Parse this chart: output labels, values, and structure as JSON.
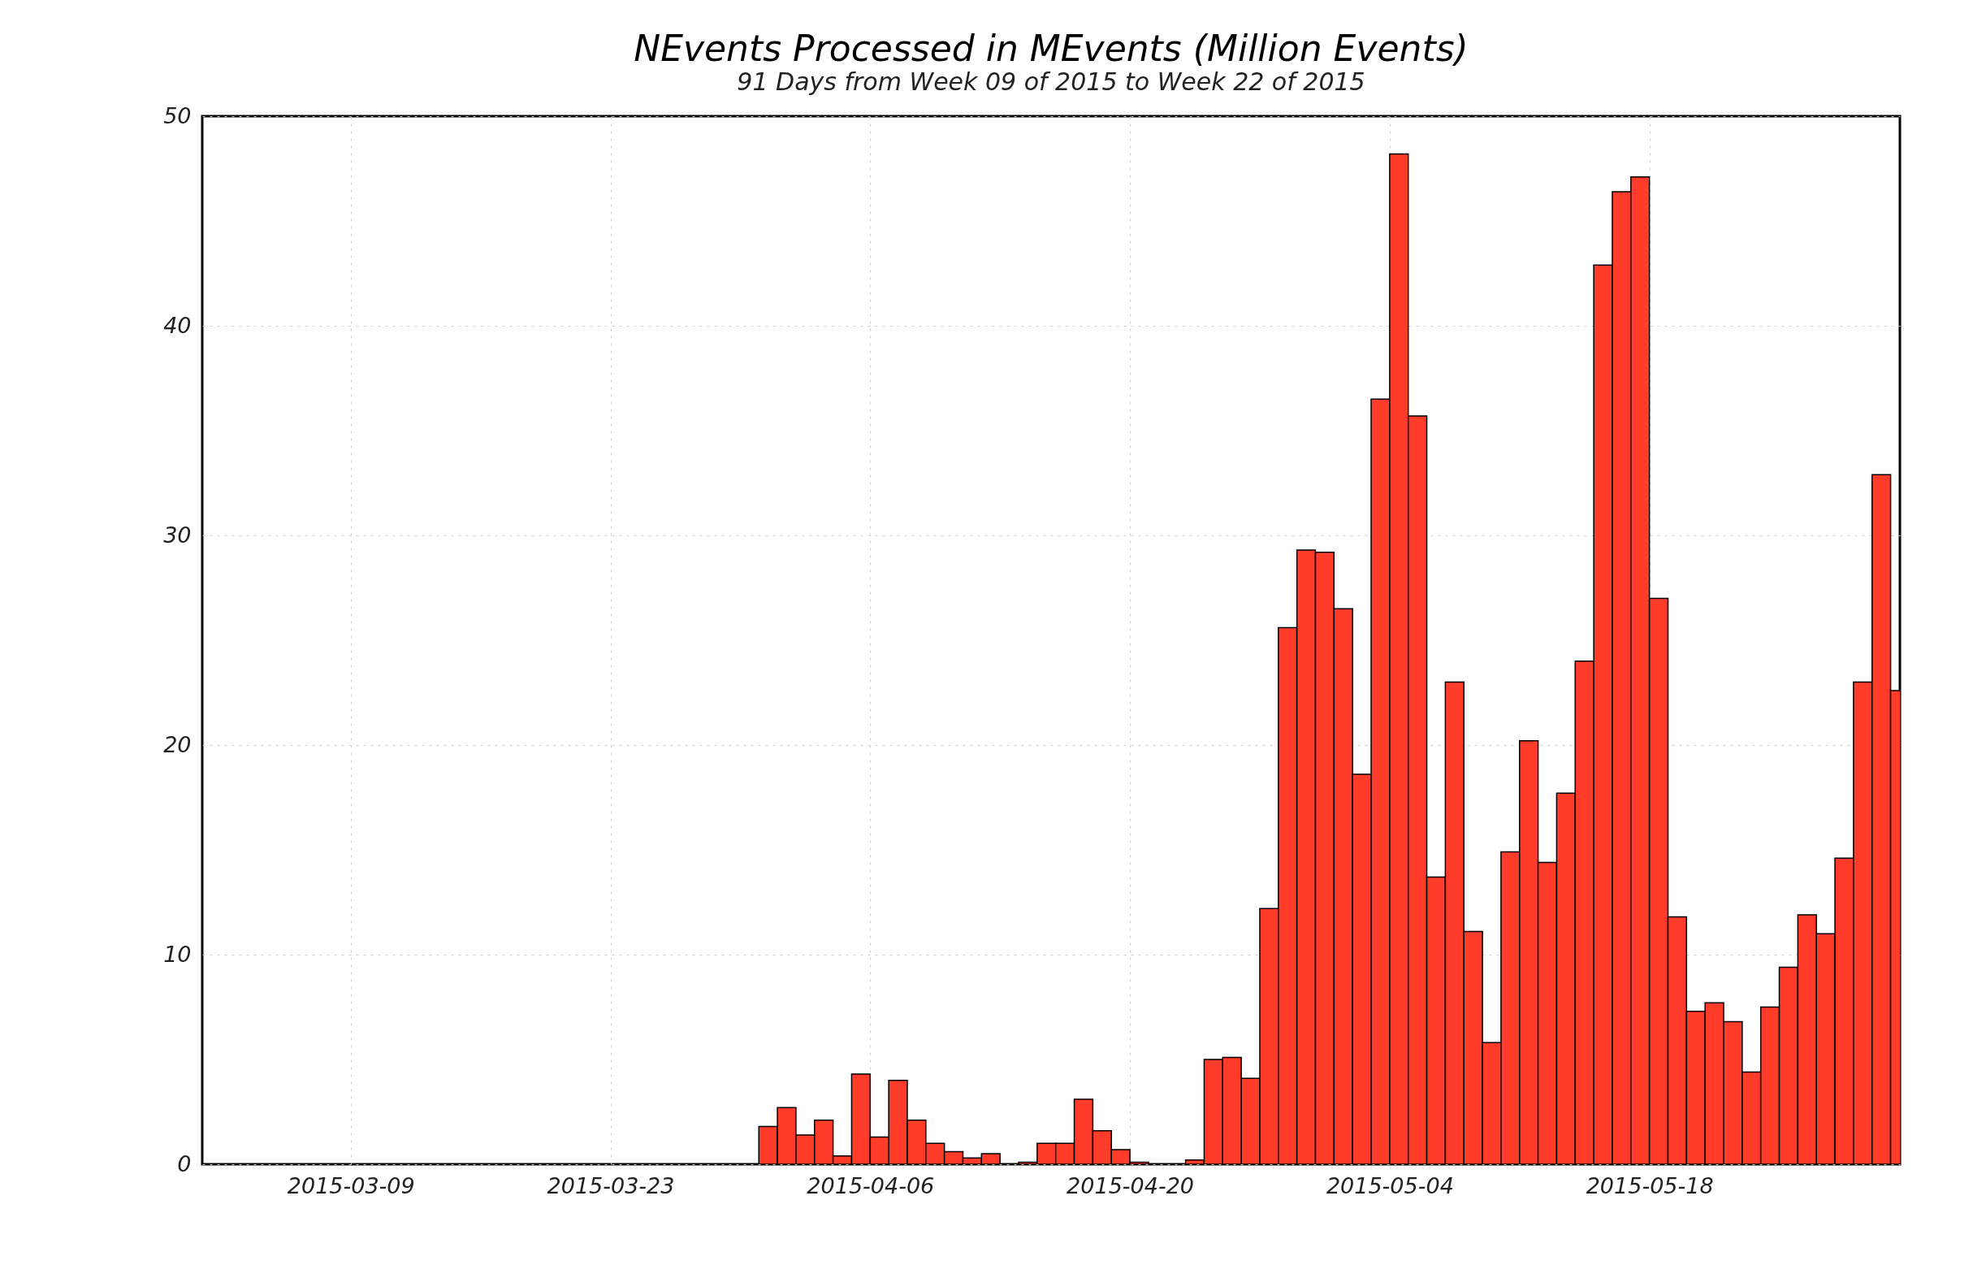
{
  "chart_data": {
    "type": "bar",
    "title": "NEvents Processed in MEvents (Million Events)",
    "subtitle": "91 Days from Week 09 of 2015 to Week 22 of 2015",
    "x": [
      "2015-03-31T12:00",
      "2015-04-01T12:00",
      "2015-04-02T12:00",
      "2015-04-03T12:00",
      "2015-04-04T12:00",
      "2015-04-05T12:00",
      "2015-04-06T12:00",
      "2015-04-07T12:00",
      "2015-04-08T12:00",
      "2015-04-09T12:00",
      "2015-04-10T12:00",
      "2015-04-11T12:00",
      "2015-04-12T12:00",
      "2015-04-14T12:00",
      "2015-04-15T12:00",
      "2015-04-16T12:00",
      "2015-04-17T12:00",
      "2015-04-18T12:00",
      "2015-04-19T12:00",
      "2015-04-20T12:00",
      "2015-04-23T12:00",
      "2015-04-24T12:00",
      "2015-04-25T12:00",
      "2015-04-26T12:00",
      "2015-04-27T12:00",
      "2015-04-28T12:00",
      "2015-04-29T12:00",
      "2015-04-30T12:00",
      "2015-05-01T12:00",
      "2015-05-02T12:00",
      "2015-05-03T12:00",
      "2015-05-04T12:00",
      "2015-05-05T12:00",
      "2015-05-06T12:00",
      "2015-05-07T12:00",
      "2015-05-08T12:00",
      "2015-05-09T12:00",
      "2015-05-10T12:00",
      "2015-05-11T12:00",
      "2015-05-12T12:00",
      "2015-05-13T12:00",
      "2015-05-14T12:00",
      "2015-05-15T12:00",
      "2015-05-16T12:00",
      "2015-05-17T12:00",
      "2015-05-18T12:00",
      "2015-05-19T12:00",
      "2015-05-20T12:00",
      "2015-05-21T12:00",
      "2015-05-22T12:00",
      "2015-05-23T12:00",
      "2015-05-24T12:00",
      "2015-05-25T12:00",
      "2015-05-26T12:00",
      "2015-05-27T12:00",
      "2015-05-28T12:00",
      "2015-05-29T12:00",
      "2015-05-30T12:00",
      "2015-05-31T12:00"
    ],
    "values": [
      1.8,
      2.7,
      1.4,
      2.1,
      0.4,
      4.3,
      1.3,
      4.0,
      2.1,
      1.0,
      0.6,
      0.3,
      0.5,
      0.1,
      1.0,
      1.0,
      3.1,
      1.6,
      0.7,
      0.1,
      0.2,
      5.0,
      5.1,
      4.1,
      12.2,
      25.6,
      29.3,
      29.2,
      26.5,
      18.6,
      36.5,
      48.2,
      35.7,
      13.7,
      23.0,
      11.1,
      5.8,
      14.9,
      20.2,
      14.4,
      17.7,
      24.0,
      42.9,
      46.4,
      47.1,
      27.0,
      11.8,
      7.3,
      7.7,
      6.8,
      4.4,
      7.5,
      9.4,
      11.9,
      11.0,
      14.6,
      23.0,
      32.9,
      22.6
    ],
    "color": "#ff3b2a",
    "xlim": [
      "2015-03-01",
      "2015-05-31T12:00"
    ],
    "xticks": [
      "2015-03-09",
      "2015-03-23",
      "2015-04-06",
      "2015-04-20",
      "2015-05-04",
      "2015-05-18"
    ],
    "ylim": [
      0,
      50
    ],
    "yticks": [
      0,
      10,
      20,
      30,
      40,
      50
    ],
    "grid": true
  }
}
